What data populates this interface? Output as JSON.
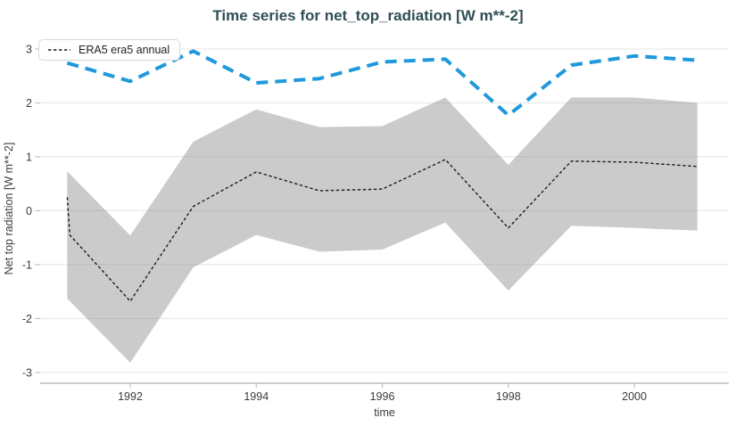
{
  "title": "Time series for net_top_radiation [W m**-2]",
  "legend": {
    "position": "top-left",
    "items": [
      {
        "label": "ERA5 era5 annual",
        "line_style": "dashed",
        "color": "#1c1c1c"
      }
    ]
  },
  "axes": {
    "x": {
      "label": "time",
      "ticks": [
        {
          "label": "1992",
          "value": 1992
        },
        {
          "label": "1994",
          "value": 1994
        },
        {
          "label": "1996",
          "value": 1996
        },
        {
          "label": "1998",
          "value": 1998
        },
        {
          "label": "2000",
          "value": 2000
        }
      ],
      "range": [
        1990.57,
        2001.5
      ]
    },
    "y": {
      "label": "Net top radiation [W m**-2]",
      "ticks": [
        {
          "label": "3",
          "value": 3
        },
        {
          "label": "2",
          "value": 2
        },
        {
          "label": "1",
          "value": 1
        },
        {
          "label": "0",
          "value": 0
        },
        {
          "label": "-1",
          "value": -1
        },
        {
          "label": "-2",
          "value": -2
        },
        {
          "label": "-3",
          "value": -3
        }
      ],
      "range": [
        -3.2,
        3.28
      ]
    }
  },
  "colors": {
    "title": "#2f4f54",
    "blue_line": "#1f99db",
    "mean_line": "#1c1c1c",
    "band_fill": "#808080",
    "gridline": "#e4e4e4",
    "axis_line": "#cdcdcd",
    "tick_mark": "#b8b8b8",
    "tick_text": "#3c3c3c",
    "legend_border": "#d9d9d9"
  },
  "chart_data": {
    "type": "line",
    "title": "Time series for net_top_radiation [W m**-2]",
    "xlabel": "time",
    "ylabel": "Net top radiation [W m**-2]",
    "x_range": [
      1990.57,
      2001.5
    ],
    "y_range": [
      -3.2,
      3.28
    ],
    "grid": "horizontal",
    "legend_position": "top-left",
    "series": [
      {
        "name": "blue dashed line (unlabeled)",
        "color": "#1f99db",
        "style": "dashed",
        "width": 4,
        "x": [
          1991,
          1992,
          1993,
          1994,
          1995,
          1996,
          1997,
          1998,
          1999,
          2000,
          2001
        ],
        "values": [
          2.74,
          2.4,
          2.96,
          2.37,
          2.45,
          2.76,
          2.81,
          1.77,
          2.7,
          2.87,
          2.79
        ]
      },
      {
        "name": "ERA5 era5 annual",
        "color": "#1c1c1c",
        "style": "dashed",
        "width": 1.4,
        "x": [
          1991,
          1991.04,
          1992,
          1993,
          1994,
          1995,
          1996,
          1997,
          1998,
          1999,
          2000,
          2001
        ],
        "values": [
          0.25,
          -0.45,
          -1.68,
          0.08,
          0.72,
          0.37,
          0.4,
          0.95,
          -0.32,
          0.92,
          0.9,
          0.82
        ]
      }
    ],
    "band": {
      "name": "uncertainty band (ERA5 era5 annual)",
      "fill": "#808080",
      "opacity": 0.41,
      "x": [
        1991,
        1992,
        1993,
        1994,
        1995,
        1996,
        1997,
        1998,
        1999,
        2000,
        2001
      ],
      "upper": [
        0.73,
        -0.46,
        1.28,
        1.88,
        1.55,
        1.57,
        2.1,
        0.85,
        2.1,
        2.1,
        2.0
      ],
      "lower": [
        -1.63,
        -2.82,
        -1.05,
        -0.45,
        -0.76,
        -0.72,
        -0.22,
        -1.48,
        -0.28,
        -0.32,
        -0.37
      ]
    }
  }
}
